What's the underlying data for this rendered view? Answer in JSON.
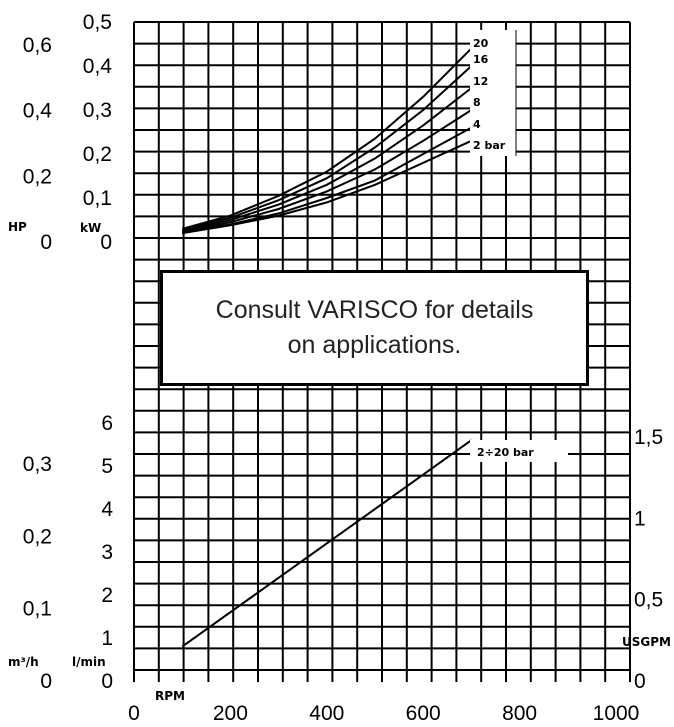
{
  "note": {
    "line1": "Consult VARISCO for details",
    "line2": "on applications."
  },
  "chart_data": [
    {
      "type": "line",
      "title": "",
      "xlabel": "RPM",
      "x_ticks": [
        "0",
        "200",
        "400",
        "600",
        "800",
        "1000"
      ],
      "xlim": [
        0,
        1000
      ],
      "ylim": [
        0,
        0.5
      ],
      "y_ticks": [
        "0",
        "0,1",
        "0,2",
        "0,3",
        "0,4",
        "0,5"
      ],
      "ylabel": "kW",
      "secondary_axis": {
        "label": "HP",
        "ticks": [
          "0",
          "0,2",
          "0,4",
          "0,6"
        ],
        "values": [
          0,
          0.2,
          0.4,
          0.6
        ]
      },
      "series": [
        {
          "name": "2 bar",
          "x": [
            100,
            200,
            300,
            400,
            500,
            600,
            700
          ],
          "values": [
            0.02,
            0.038,
            0.06,
            0.09,
            0.13,
            0.18,
            0.23
          ]
        },
        {
          "name": "4",
          "x": [
            100,
            200,
            300,
            400,
            500,
            600,
            700
          ],
          "values": [
            0.02,
            0.04,
            0.065,
            0.1,
            0.14,
            0.2,
            0.26
          ]
        },
        {
          "name": "8",
          "x": [
            100,
            200,
            300,
            400,
            500,
            600,
            700
          ],
          "values": [
            0.022,
            0.045,
            0.075,
            0.115,
            0.165,
            0.23,
            0.3
          ]
        },
        {
          "name": "12",
          "x": [
            100,
            200,
            300,
            400,
            500,
            600,
            700
          ],
          "values": [
            0.025,
            0.05,
            0.085,
            0.13,
            0.19,
            0.265,
            0.35
          ]
        },
        {
          "name": "16",
          "x": [
            100,
            200,
            300,
            400,
            500,
            600,
            700
          ],
          "values": [
            0.028,
            0.055,
            0.095,
            0.145,
            0.215,
            0.3,
            0.4
          ]
        },
        {
          "name": "20",
          "x": [
            100,
            200,
            300,
            400,
            500,
            600,
            700
          ],
          "values": [
            0.03,
            0.06,
            0.105,
            0.16,
            0.235,
            0.33,
            0.44
          ]
        }
      ]
    },
    {
      "type": "line",
      "title": "",
      "xlabel": "RPM",
      "x_ticks": [
        "0",
        "200",
        "400",
        "600",
        "800",
        "1000"
      ],
      "xlim": [
        0,
        1000
      ],
      "ylim": [
        0,
        6
      ],
      "y_ticks": [
        "0",
        "1",
        "2",
        "3",
        "4",
        "5",
        "6"
      ],
      "ylabel": "l/min",
      "left_axis": {
        "label": "m³/h",
        "ticks": [
          "0",
          "0,1",
          "0,2",
          "0,3"
        ],
        "values": [
          0,
          0.1,
          0.2,
          0.3
        ]
      },
      "right_axis": {
        "label": "USGPM",
        "ticks": [
          "0",
          "0,5",
          "1",
          "1,5"
        ],
        "values": [
          0,
          0.5,
          1,
          1.5
        ]
      },
      "series": [
        {
          "name": "2÷20 bar",
          "x": [
            100,
            700
          ],
          "values": [
            0.8,
            5.6
          ]
        }
      ]
    }
  ]
}
